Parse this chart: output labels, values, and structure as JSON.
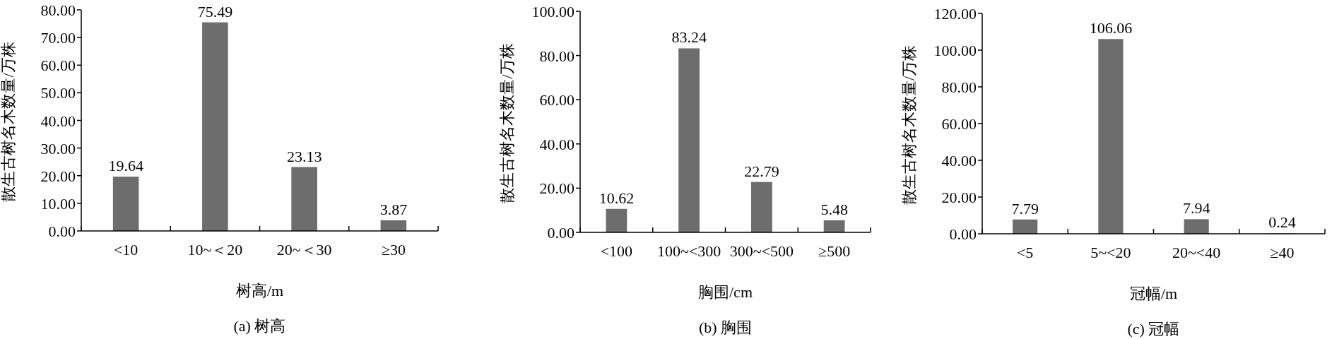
{
  "chart_data": [
    {
      "type": "bar",
      "title": "(a) 树高",
      "xlabel": "树高/m",
      "ylabel": "散生古树名木数量/万株",
      "categories": [
        "<10",
        "10~＜20",
        "20~＜30",
        "≥30"
      ],
      "values": [
        19.64,
        75.49,
        23.13,
        3.87
      ],
      "color": "#6d6d6d",
      "ylim": [
        0,
        80
      ],
      "yticks": [
        {
          "value": 0,
          "label": "0.00"
        },
        {
          "value": 10,
          "label": "10.00"
        },
        {
          "value": 20,
          "label": "20.00"
        },
        {
          "value": 30,
          "label": "30.00"
        },
        {
          "value": 40,
          "label": "40.00"
        },
        {
          "value": 50,
          "label": "50.00"
        },
        {
          "value": 60,
          "label": "60.00"
        },
        {
          "value": 70,
          "label": "70.00"
        },
        {
          "value": 80,
          "label": "80.00"
        }
      ],
      "data_labels": true
    },
    {
      "type": "bar",
      "title": "(b) 胸围",
      "xlabel": "胸围/cm",
      "ylabel": "散生古树名木数量/万株",
      "categories": [
        "<100",
        "100~<300",
        "300~<500",
        "≥500"
      ],
      "values": [
        10.62,
        83.24,
        22.79,
        5.48
      ],
      "color": "#6d6d6d",
      "ylim": [
        0,
        100
      ],
      "yticks": [
        {
          "value": 0,
          "label": "0.00"
        },
        {
          "value": 20,
          "label": "20.00"
        },
        {
          "value": 40,
          "label": "40.00"
        },
        {
          "value": 60,
          "label": "60.00"
        },
        {
          "value": 80,
          "label": "80.00"
        },
        {
          "value": 100,
          "label": "100.00"
        }
      ],
      "data_labels": true
    },
    {
      "type": "bar",
      "title": "(c) 冠幅",
      "xlabel": "冠幅/m",
      "ylabel": "散生古树名木数量/万株",
      "categories": [
        "<5",
        "5~<20",
        "20~<40",
        "≥40"
      ],
      "values": [
        7.79,
        106.06,
        7.94,
        0.24
      ],
      "color": "#6d6d6d",
      "ylim": [
        0,
        120
      ],
      "yticks": [
        {
          "value": 0,
          "label": "0.00"
        },
        {
          "value": 20,
          "label": "20.00"
        },
        {
          "value": 40,
          "label": "40.00"
        },
        {
          "value": 60,
          "label": "60.00"
        },
        {
          "value": 80,
          "label": "80.00"
        },
        {
          "value": 100,
          "label": "100.00"
        },
        {
          "value": 120,
          "label": "120.00"
        }
      ],
      "data_labels": true
    }
  ]
}
